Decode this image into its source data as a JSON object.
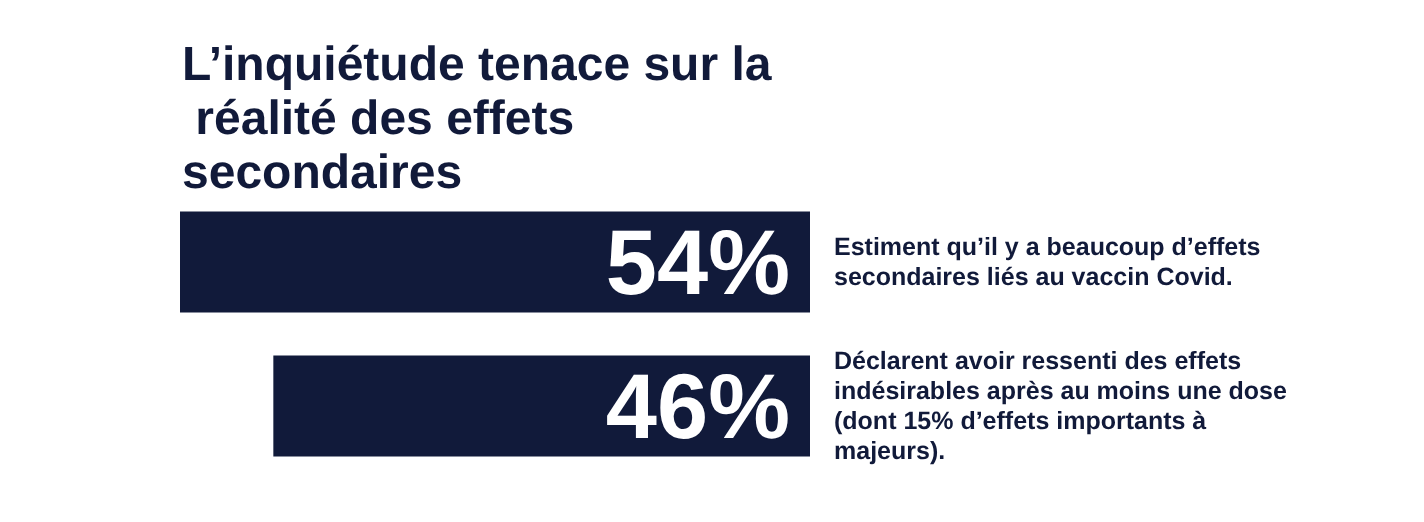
{
  "chart_data": {
    "type": "bar",
    "orientation": "horizontal",
    "title": "L’inquiétude tenace sur la réalité des effets secondaires",
    "categories": [
      "Estiment qu’il y a beaucoup d’effets secondaires liés au vaccin Covid.",
      "Déclarent avoir ressenti des effets indésirables après au moins une dose (dont 15% d’effets importants à majeurs)."
    ],
    "values": [
      54,
      46
    ],
    "value_labels": [
      "54%",
      "46%"
    ],
    "color": "#111a3a",
    "tick_labels": "y"
  }
}
